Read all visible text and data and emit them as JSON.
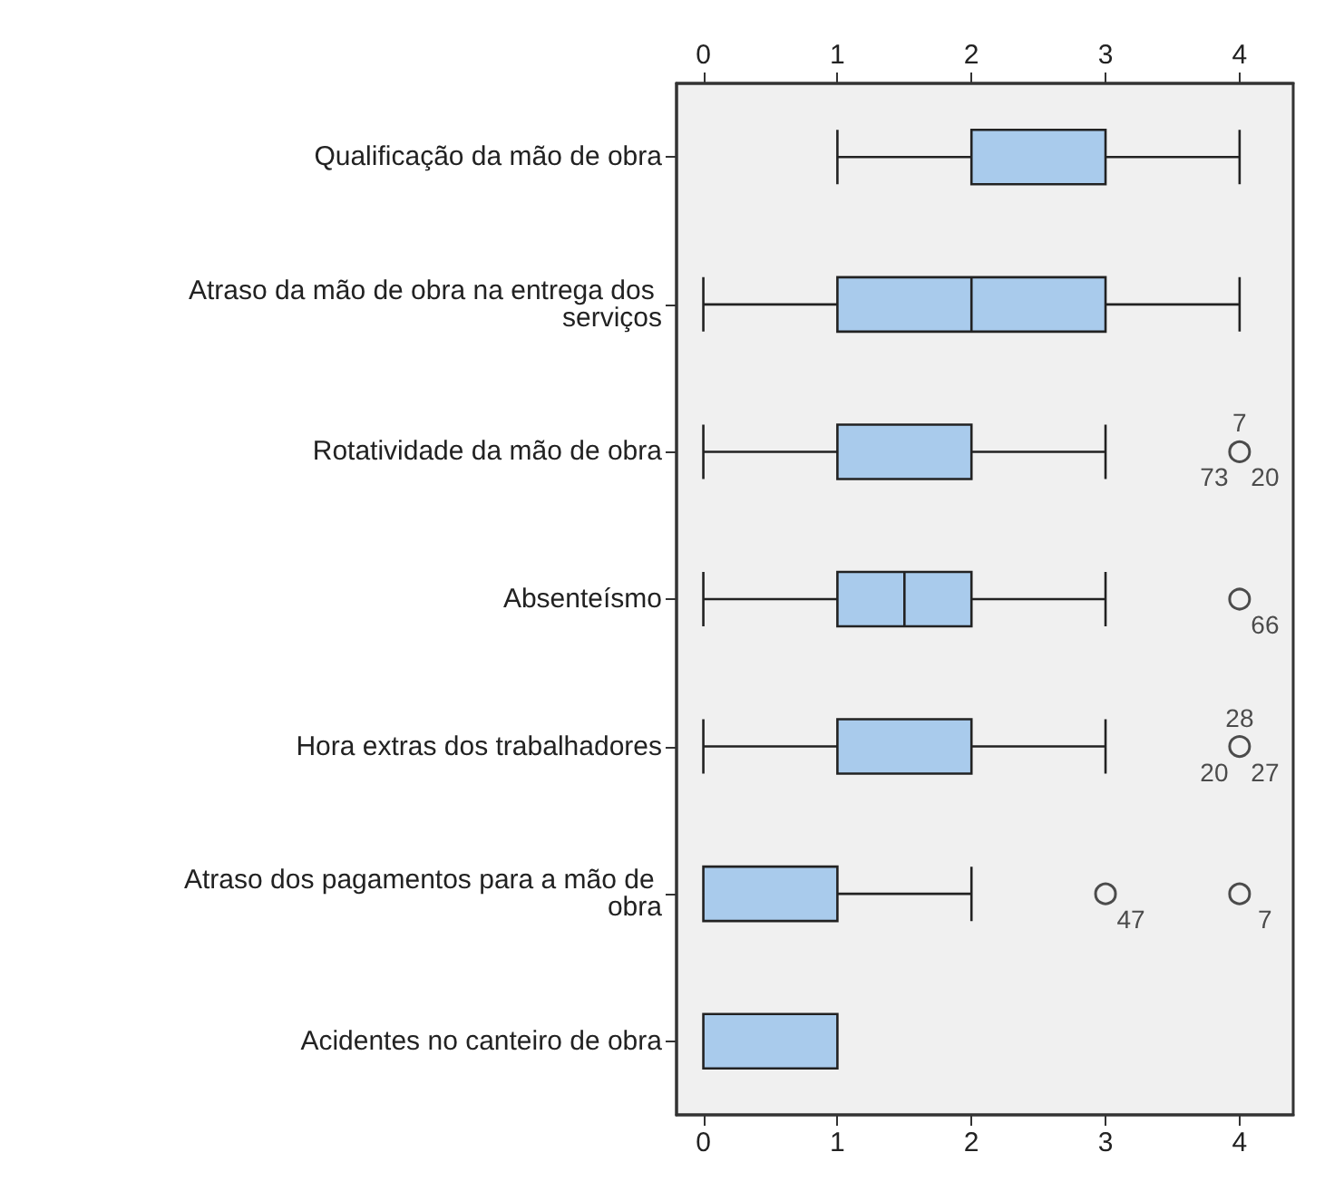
{
  "chart_data": {
    "type": "box",
    "orientation": "horizontal",
    "categories": [
      "Qualificação da mão de obra",
      "Atraso da mão de obra na entrega dos serviços",
      "Rotatividade da mão de obra",
      "Absenteísmo",
      "Hora extras dos trabalhadores",
      "Atraso dos pagamentos para a mão de obra",
      "Acidentes no canteiro de obra"
    ],
    "boxes": [
      {
        "low": 1,
        "q1": 2,
        "median": 2,
        "q3": 3,
        "high": 4
      },
      {
        "low": 0,
        "q1": 1,
        "median": 2,
        "q3": 3,
        "high": 4
      },
      {
        "low": 0,
        "q1": 1,
        "median": 2,
        "q3": 2,
        "high": 3,
        "outliers": [
          4
        ]
      },
      {
        "low": 0,
        "q1": 1,
        "median": 1.5,
        "q3": 2,
        "high": 3,
        "outliers": [
          4
        ]
      },
      {
        "low": 0,
        "q1": 1,
        "median": 1,
        "q3": 2,
        "high": 3,
        "outliers": [
          4
        ]
      },
      {
        "low": 0,
        "q1": 0,
        "median": 0,
        "q3": 1,
        "high": 2,
        "outliers": [
          3,
          4
        ]
      },
      {
        "low": 0,
        "q1": 0,
        "median": 0,
        "q3": 1,
        "high": 1
      }
    ],
    "color": "#a9cbec",
    "marker": "circle",
    "grid": false,
    "xlim": [
      -0.2,
      4.4
    ],
    "xticks": [
      0,
      1,
      2,
      3,
      4
    ],
    "x2lim": [
      -0.2,
      4.4
    ],
    "x2ticks": [
      0,
      1,
      2,
      3,
      4
    ],
    "annotations": [
      "20",
      "73",
      "7",
      "66",
      "27",
      "20",
      "28",
      "47",
      "7"
    ]
  }
}
